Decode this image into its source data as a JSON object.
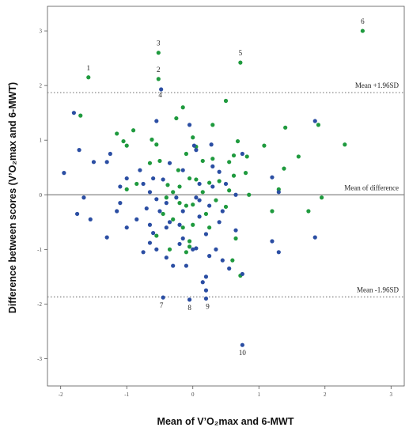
{
  "chart_data": {
    "type": "scatter",
    "title": "",
    "xlabel": "Mean of V’O₂max and 6-MWT",
    "ylabel": "Difference between scores (V’O₂max and 6-MWT)",
    "xlim": [
      -2.2,
      3.2
    ],
    "ylim": [
      -3.5,
      3.45
    ],
    "x_ticks": [
      "-2",
      "-1",
      "0",
      "1",
      "2",
      "3"
    ],
    "y_ticks": [
      "-3",
      "-2",
      "-1",
      "0",
      "1",
      "2",
      "3"
    ],
    "reference_lines": [
      {
        "label": "Mean +1.96SD",
        "y": 1.87,
        "style": "dotted"
      },
      {
        "label": "Mean of difference",
        "y": 0.0,
        "style": "solid"
      },
      {
        "label": "Mean -1.96SD",
        "y": -1.87,
        "style": "dotted"
      }
    ],
    "point_labels": [
      {
        "text": "1",
        "x": -1.58,
        "y": 2.15
      },
      {
        "text": "2",
        "x": -0.52,
        "y": 2.12
      },
      {
        "text": "3",
        "x": -0.52,
        "y": 2.6
      },
      {
        "text": "4",
        "x": -0.48,
        "y": 1.93
      },
      {
        "text": "5",
        "x": 0.72,
        "y": 2.42
      },
      {
        "text": "6",
        "x": 2.57,
        "y": 3.0
      },
      {
        "text": "7",
        "x": -0.45,
        "y": -1.88
      },
      {
        "text": "8",
        "x": -0.05,
        "y": -1.92
      },
      {
        "text": "9",
        "x": 0.2,
        "y": -1.9
      },
      {
        "text": "10",
        "x": 0.75,
        "y": -2.75
      }
    ],
    "grid": false,
    "series": [
      {
        "color": "#1f9a3e",
        "points": [
          [
            2.57,
            3.0
          ],
          [
            -0.52,
            2.6
          ],
          [
            0.72,
            2.42
          ],
          [
            -1.58,
            2.15
          ],
          [
            -0.52,
            2.12
          ],
          [
            0.5,
            1.72
          ],
          [
            -0.15,
            1.6
          ],
          [
            1.4,
            1.23
          ],
          [
            -1.7,
            1.45
          ],
          [
            -0.25,
            1.4
          ],
          [
            -1.15,
            1.12
          ],
          [
            -0.62,
            1.01
          ],
          [
            -0.9,
            1.18
          ],
          [
            -1.05,
            0.98
          ],
          [
            0.3,
            1.28
          ],
          [
            0.0,
            1.05
          ],
          [
            0.68,
            0.98
          ],
          [
            2.3,
            0.92
          ],
          [
            -1.0,
            0.9
          ],
          [
            -0.55,
            0.92
          ],
          [
            1.08,
            0.9
          ],
          [
            0.05,
            0.88
          ],
          [
            0.82,
            0.7
          ],
          [
            0.62,
            0.72
          ],
          [
            -0.1,
            0.75
          ],
          [
            -0.5,
            0.62
          ],
          [
            0.3,
            0.66
          ],
          [
            0.15,
            0.62
          ],
          [
            1.6,
            0.7
          ],
          [
            -0.65,
            0.58
          ],
          [
            0.55,
            0.6
          ],
          [
            1.38,
            0.48
          ],
          [
            -0.22,
            0.45
          ],
          [
            0.8,
            0.4
          ],
          [
            0.62,
            0.35
          ],
          [
            -0.05,
            0.3
          ],
          [
            0.05,
            0.28
          ],
          [
            0.4,
            0.25
          ],
          [
            0.25,
            0.22
          ],
          [
            -0.85,
            0.2
          ],
          [
            -1.0,
            0.1
          ],
          [
            -0.2,
            0.15
          ],
          [
            -0.38,
            0.18
          ],
          [
            -0.3,
            0.05
          ],
          [
            0.55,
            0.08
          ],
          [
            0.15,
            0.05
          ],
          [
            1.3,
            0.1
          ],
          [
            0.85,
            0.0
          ],
          [
            -0.4,
            -0.05
          ],
          [
            -0.2,
            -0.15
          ],
          [
            -0.1,
            -0.2
          ],
          [
            0.0,
            -0.18
          ],
          [
            0.35,
            -0.1
          ],
          [
            0.5,
            -0.22
          ],
          [
            1.2,
            -0.3
          ],
          [
            1.75,
            -0.3
          ],
          [
            -0.45,
            -0.35
          ],
          [
            -0.3,
            -0.45
          ],
          [
            0.2,
            -0.35
          ],
          [
            0.0,
            -0.55
          ],
          [
            -0.15,
            -0.6
          ],
          [
            0.25,
            -0.6
          ],
          [
            -0.55,
            -0.75
          ],
          [
            -0.05,
            -0.85
          ],
          [
            0.65,
            -0.8
          ],
          [
            -0.1,
            -1.05
          ],
          [
            -0.35,
            -1.0
          ],
          [
            0.6,
            -1.2
          ],
          [
            0.72,
            -1.48
          ],
          [
            1.95,
            -0.05
          ],
          [
            1.9,
            1.28
          ],
          [
            -0.05,
            -0.95
          ]
        ]
      },
      {
        "color": "#2b4ea3",
        "points": [
          [
            -0.48,
            1.93
          ],
          [
            -1.8,
            1.5
          ],
          [
            -0.55,
            1.35
          ],
          [
            1.85,
            1.35
          ],
          [
            -0.05,
            1.28
          ],
          [
            0.02,
            0.9
          ],
          [
            -1.72,
            0.82
          ],
          [
            0.28,
            0.92
          ],
          [
            0.05,
            0.82
          ],
          [
            0.75,
            0.75
          ],
          [
            -1.25,
            0.75
          ],
          [
            0.3,
            0.52
          ],
          [
            -1.3,
            0.6
          ],
          [
            -0.35,
            0.58
          ],
          [
            -0.8,
            0.45
          ],
          [
            0.4,
            0.42
          ],
          [
            -0.15,
            0.45
          ],
          [
            1.2,
            0.32
          ],
          [
            -1.95,
            0.4
          ],
          [
            -1.5,
            0.6
          ],
          [
            -0.6,
            0.3
          ],
          [
            -1.0,
            0.3
          ],
          [
            0.5,
            0.2
          ],
          [
            -0.45,
            0.28
          ],
          [
            0.1,
            0.2
          ],
          [
            -0.75,
            0.2
          ],
          [
            -1.1,
            0.15
          ],
          [
            0.3,
            0.15
          ],
          [
            -0.65,
            0.05
          ],
          [
            -1.65,
            -0.05
          ],
          [
            0.05,
            -0.05
          ],
          [
            -0.25,
            -0.05
          ],
          [
            0.65,
            0.0
          ],
          [
            1.3,
            0.05
          ],
          [
            -0.55,
            -0.08
          ],
          [
            -1.1,
            -0.15
          ],
          [
            0.1,
            -0.1
          ],
          [
            -0.4,
            -0.15
          ],
          [
            -0.7,
            -0.25
          ],
          [
            0.25,
            -0.2
          ],
          [
            -0.15,
            -0.3
          ],
          [
            -1.15,
            -0.3
          ],
          [
            -0.5,
            -0.3
          ],
          [
            0.45,
            -0.3
          ],
          [
            -1.75,
            -0.35
          ],
          [
            0.1,
            -0.4
          ],
          [
            -0.85,
            -0.45
          ],
          [
            -0.35,
            -0.5
          ],
          [
            0.4,
            -0.5
          ],
          [
            -0.2,
            -0.55
          ],
          [
            -1.55,
            -0.45
          ],
          [
            -0.65,
            -0.55
          ],
          [
            -1.0,
            -0.6
          ],
          [
            -0.4,
            -0.6
          ],
          [
            0.65,
            -0.65
          ],
          [
            -0.6,
            -0.7
          ],
          [
            0.2,
            -0.72
          ],
          [
            -1.3,
            -0.78
          ],
          [
            1.2,
            -0.85
          ],
          [
            -0.15,
            -0.8
          ],
          [
            1.85,
            -0.78
          ],
          [
            -0.65,
            -0.88
          ],
          [
            -0.2,
            -0.9
          ],
          [
            0.05,
            -0.98
          ],
          [
            -0.55,
            -1.0
          ],
          [
            0.35,
            -1.0
          ],
          [
            -0.75,
            -1.05
          ],
          [
            0.0,
            -1.0
          ],
          [
            1.3,
            -1.05
          ],
          [
            -0.4,
            -1.15
          ],
          [
            0.25,
            -1.12
          ],
          [
            0.45,
            -1.2
          ],
          [
            -0.3,
            -1.3
          ],
          [
            -0.1,
            -1.3
          ],
          [
            0.55,
            -1.35
          ],
          [
            0.2,
            -1.5
          ],
          [
            0.75,
            -1.45
          ],
          [
            0.15,
            -1.6
          ],
          [
            0.2,
            -1.75
          ],
          [
            -0.45,
            -1.88
          ],
          [
            -0.05,
            -1.92
          ],
          [
            0.2,
            -1.9
          ],
          [
            0.75,
            -2.75
          ]
        ]
      }
    ]
  }
}
